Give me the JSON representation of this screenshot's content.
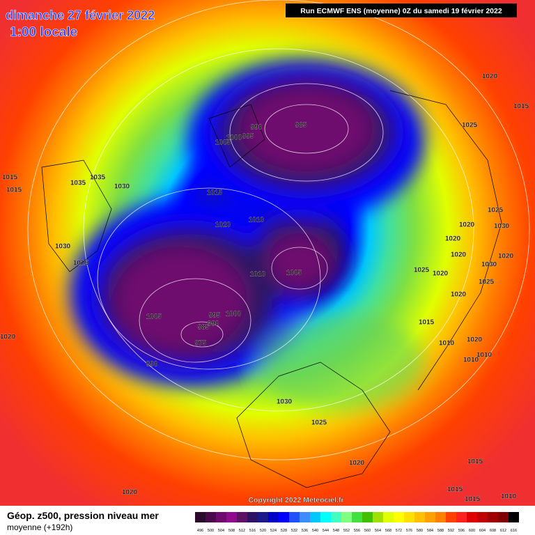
{
  "header": {
    "date": "dimanche 27 février 2022",
    "time": "1:00 locale",
    "run": "Run ECMWF ENS (moyenne) 0Z du samedi 19 février 2022"
  },
  "map": {
    "copyright": "Copyright 2022 Meteociel.fr",
    "isobar_labels": [
      "1020",
      "1015",
      "1025",
      "1015",
      "1015",
      "1035",
      "1035",
      "1030",
      "990",
      "985",
      "1000",
      "995",
      "1005",
      "1015",
      "1020",
      "1010",
      "1025",
      "1020",
      "1030",
      "1020",
      "1020",
      "1030",
      "1025",
      "1030",
      "1020",
      "1025",
      "1020",
      "1010",
      "1005",
      "1025",
      "1020",
      "995",
      "1000",
      "990",
      "985",
      "1005",
      "1015",
      "975",
      "1020",
      "1010",
      "1020",
      "1010",
      "1010",
      "990",
      "1030",
      "1025",
      "1020",
      "1015",
      "1020",
      "1015",
      "1015",
      "1010"
    ]
  },
  "footer": {
    "title": "Géop. z500, pression niveau mer",
    "subtitle": "moyenne  (+192h)"
  },
  "legend": {
    "values": [
      496,
      500,
      504,
      508,
      512,
      516,
      520,
      524,
      528,
      532,
      536,
      540,
      544,
      548,
      552,
      556,
      560,
      564,
      568,
      572,
      576,
      580,
      584,
      588,
      592,
      596,
      600,
      604,
      608,
      612,
      616
    ],
    "colors": [
      "#2b0b2b",
      "#4a0a4a",
      "#6e0a6e",
      "#8f0a8f",
      "#5e1264",
      "#2b1463",
      "#1a1a8a",
      "#0000c8",
      "#0000ff",
      "#2050ff",
      "#3c8cff",
      "#00c8ff",
      "#00ffff",
      "#40ffc0",
      "#80ff80",
      "#40e040",
      "#40c000",
      "#a0e000",
      "#e0ff00",
      "#ffff00",
      "#ffe000",
      "#ffc000",
      "#ffa000",
      "#ff8000",
      "#ff4000",
      "#ff2020",
      "#e00000",
      "#c00000",
      "#a00000",
      "#800000",
      "#000000"
    ]
  }
}
